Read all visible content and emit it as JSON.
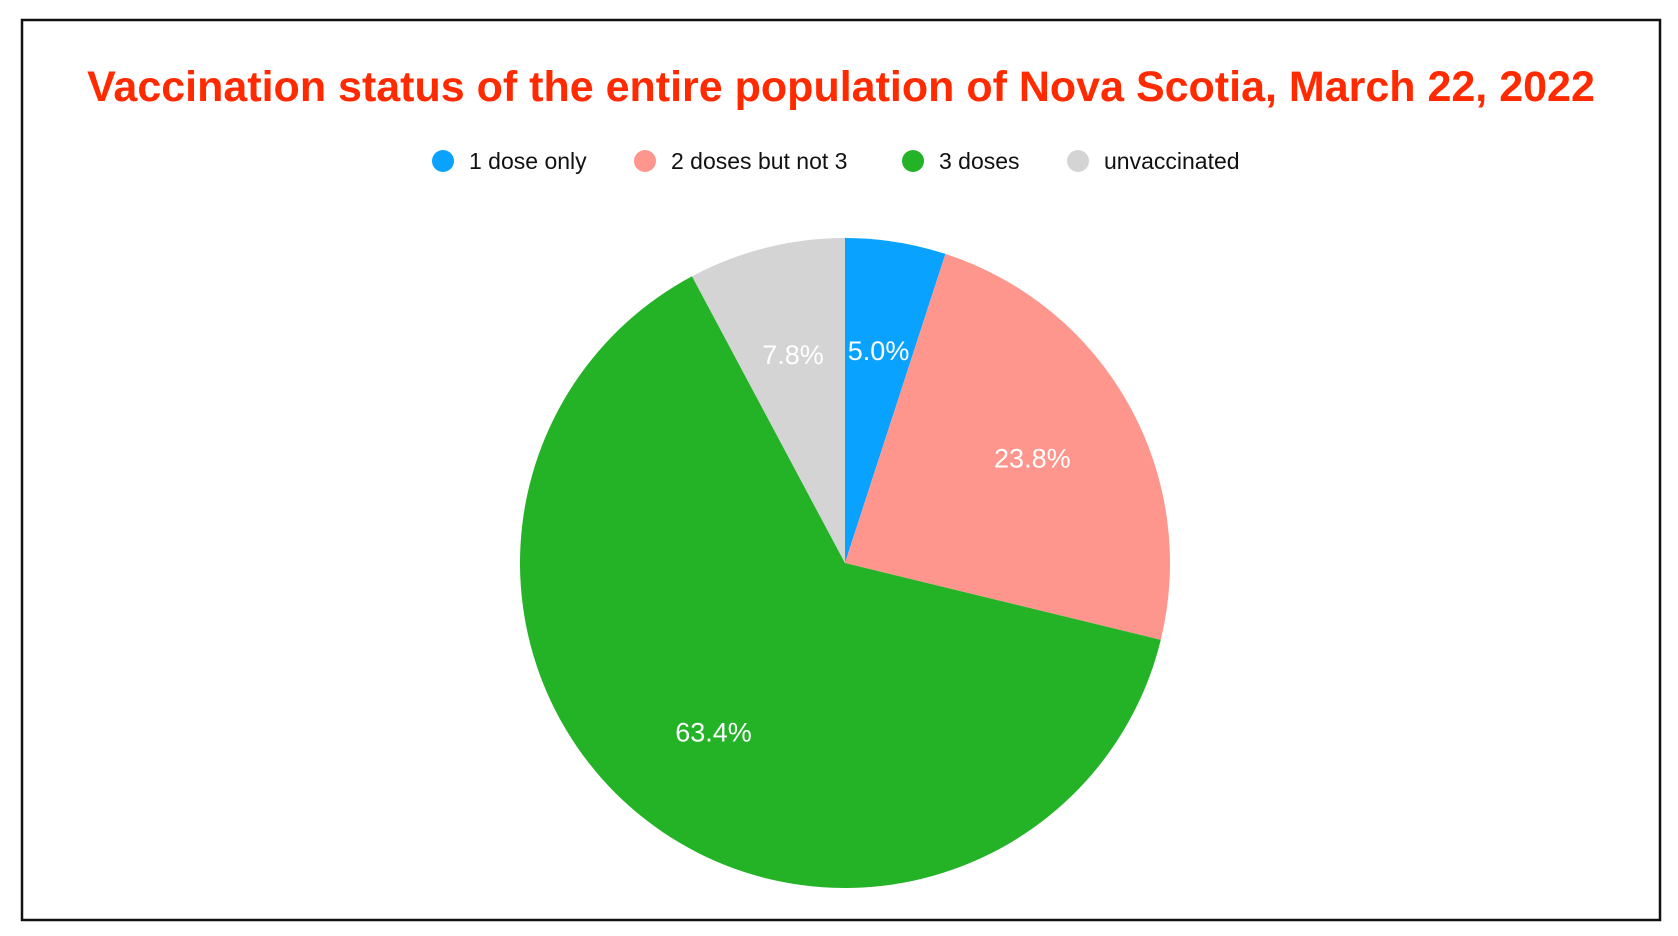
{
  "chart_data": {
    "type": "pie",
    "title": "Vaccination status of the entire population of Nova Scotia, March 22, 2022",
    "title_color": "#ff2a00",
    "legend_placement": "top",
    "start": "top-clockwise",
    "slices": [
      {
        "label": "1 dose only",
        "value": 5.0,
        "display": "5.0%",
        "color": "#0aa2ff"
      },
      {
        "label": "2 doses but not 3",
        "value": 23.8,
        "display": "23.8%",
        "color": "#ff968d"
      },
      {
        "label": "3 doses",
        "value": 63.4,
        "display": "63.4%",
        "color": "#24b227"
      },
      {
        "label": "unvaccinated",
        "value": 7.8,
        "display": "7.8%",
        "color": "#d4d4d4"
      }
    ]
  }
}
